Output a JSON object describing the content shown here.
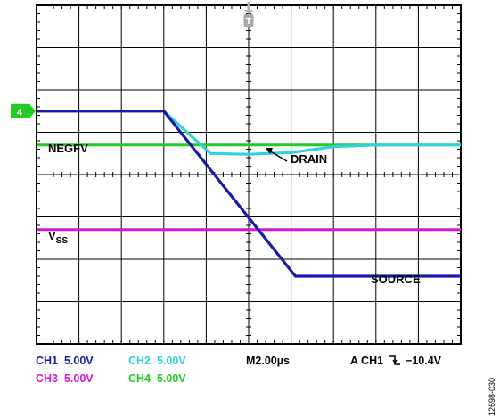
{
  "colors": {
    "ch1": "#1a1aa8",
    "ch2": "#2ed3d6",
    "ch3": "#d21ad2",
    "ch4": "#22cc22",
    "grid": "#000000"
  },
  "labels": {
    "negfv": "NEGFV",
    "drain": "DRAIN",
    "vss_main": "V",
    "vss_sub": "SS",
    "source": "SOURCE",
    "trigger_marker": "T",
    "ch4_marker": "4"
  },
  "status": {
    "ch1": {
      "name": "CH1",
      "scale": "5.00V"
    },
    "ch2": {
      "name": "CH2",
      "scale": "5.00V"
    },
    "ch3": {
      "name": "CH3",
      "scale": "5.00V"
    },
    "ch4": {
      "name": "CH4",
      "scale": "5.00V"
    },
    "timebase": "M2.00µs",
    "trigger": "A  CH1",
    "trigger_slope": "falling-edge-icon",
    "trigger_level": "−10.4V"
  },
  "figure_id": "12698-030",
  "chart_data": {
    "type": "line",
    "x_unit": "µs",
    "y_unit": "V",
    "time_per_div": 2.0,
    "volts_per_div": 5.0,
    "divisions": {
      "x": 10,
      "y": 8
    },
    "xlim": [
      -10,
      10
    ],
    "grid": true,
    "series": [
      {
        "name": "SOURCE",
        "channel": "CH1",
        "color": "#1a1aa8",
        "x": [
          -10,
          -4,
          2.2,
          10
        ],
        "y": [
          0,
          0,
          -19.5,
          -19.5
        ]
      },
      {
        "name": "DRAIN",
        "channel": "CH2",
        "color": "#2ed3d6",
        "x": [
          -10,
          -4,
          -1.8,
          0,
          2,
          4,
          6,
          10
        ],
        "y": [
          0,
          0,
          -5.0,
          -5.1,
          -4.9,
          -4.2,
          -4.0,
          -4.0
        ]
      },
      {
        "name": "V_SS",
        "channel": "CH3",
        "color": "#d21ad2",
        "x": [
          -10,
          10
        ],
        "y": [
          -14.0,
          -14.0
        ]
      },
      {
        "name": "NEGFV",
        "channel": "CH4",
        "color": "#22cc22",
        "x": [
          -10,
          10
        ],
        "y": [
          -4.0,
          -4.0
        ]
      }
    ]
  }
}
